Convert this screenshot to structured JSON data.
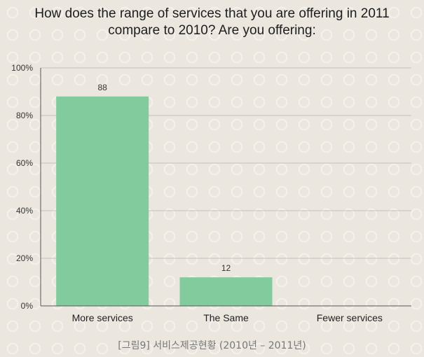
{
  "chart_data": {
    "type": "bar",
    "title_lines": [
      "How does the range of services that you are offering in 2011",
      "compare to 2010? Are you offering:"
    ],
    "categories": [
      "More services",
      "The Same",
      "Fewer services"
    ],
    "values": [
      88,
      12,
      null
    ],
    "data_labels": [
      "88",
      "12",
      ""
    ],
    "ylim": [
      0,
      100
    ],
    "yticks": [
      0,
      20,
      40,
      60,
      80,
      100
    ],
    "ytick_labels": [
      "0%",
      "20%",
      "40%",
      "60%",
      "80%",
      "100%"
    ],
    "grid": true,
    "bar_color": "#82cb9c",
    "grid_color": "#c5c2bb",
    "axis_color": "#555555"
  },
  "caption": "[그림9] 서비스제공현황 (2010년 – 2011년)"
}
